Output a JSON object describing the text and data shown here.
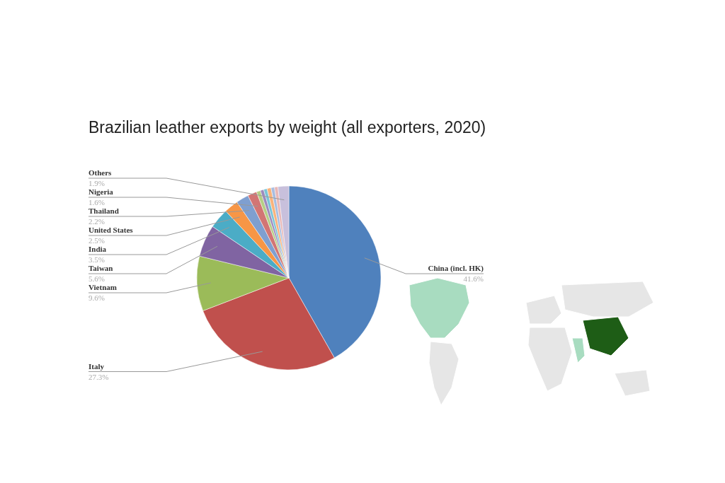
{
  "chart_data": {
    "type": "pie",
    "title": "Brazilian leather exports by weight (all exporters, 2020)",
    "categories": [
      "China (incl. HK)",
      "Italy",
      "Vietnam",
      "Taiwan",
      "India",
      "United States",
      "Thailand",
      "Nigeria",
      null,
      null,
      null,
      null,
      null,
      null,
      "Others"
    ],
    "values": [
      41.6,
      27.3,
      9.6,
      5.6,
      3.5,
      2.5,
      2.2,
      1.6,
      0.7,
      0.6,
      0.6,
      0.7,
      0.6,
      0.6,
      1.9
    ],
    "value_labels": [
      "41.6%",
      "27.3%",
      "9.6%",
      "5.6%",
      "3.5%",
      "2.5%",
      "2.2%",
      "1.6%",
      null,
      null,
      null,
      null,
      null,
      null,
      "1.9%"
    ],
    "colors": [
      "#4f81bd",
      "#c0504d",
      "#9bbb59",
      "#8064a2",
      "#4bacc6",
      "#f79646",
      "#7f9fd0",
      "#d27574",
      "#b5cf85",
      "#9d8bbd",
      "#79c4d8",
      "#f9b37c",
      "#a8bde0",
      "#e8b7b6",
      "#c8c0dc"
    ]
  }
}
